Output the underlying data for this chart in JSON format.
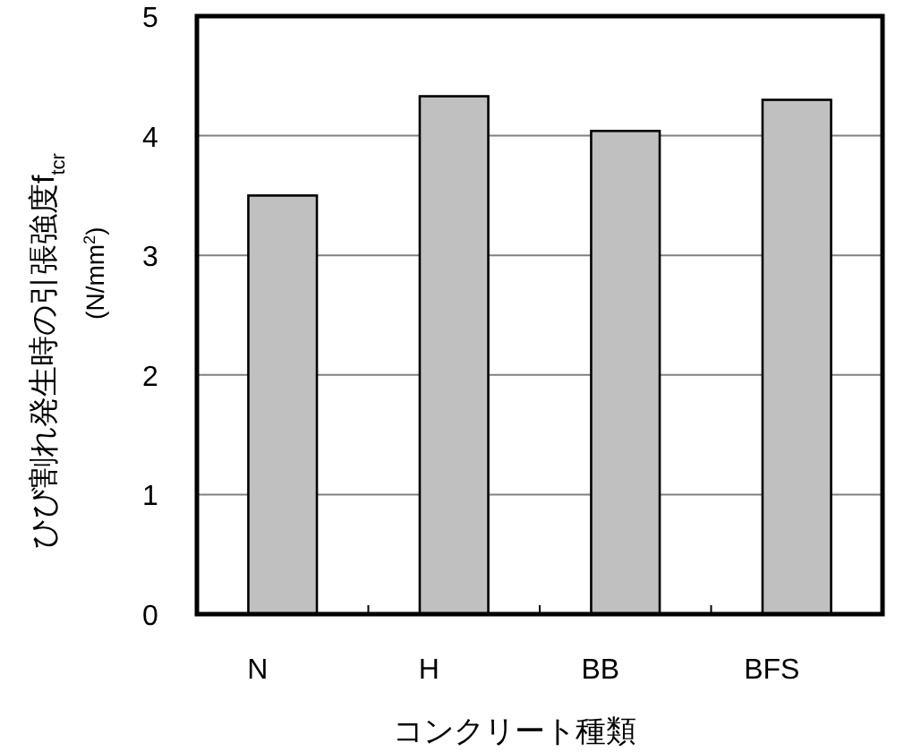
{
  "chart_data": {
    "type": "bar",
    "xlabel": "コンクリート種類",
    "ylabel": "ひび割れ発生時の引張強度f$_{tcr}$",
    "y2label": "(N/mm$^{2}$)",
    "categories": [
      "N",
      "H",
      "BB",
      "BFS"
    ],
    "values": [
      3.5,
      4.33,
      4.04,
      4.3
    ],
    "color": "#c0c0c0",
    "ylim": [
      0,
      5
    ],
    "yticks": [
      0,
      1,
      2,
      3,
      4,
      5
    ],
    "grid": "y"
  }
}
